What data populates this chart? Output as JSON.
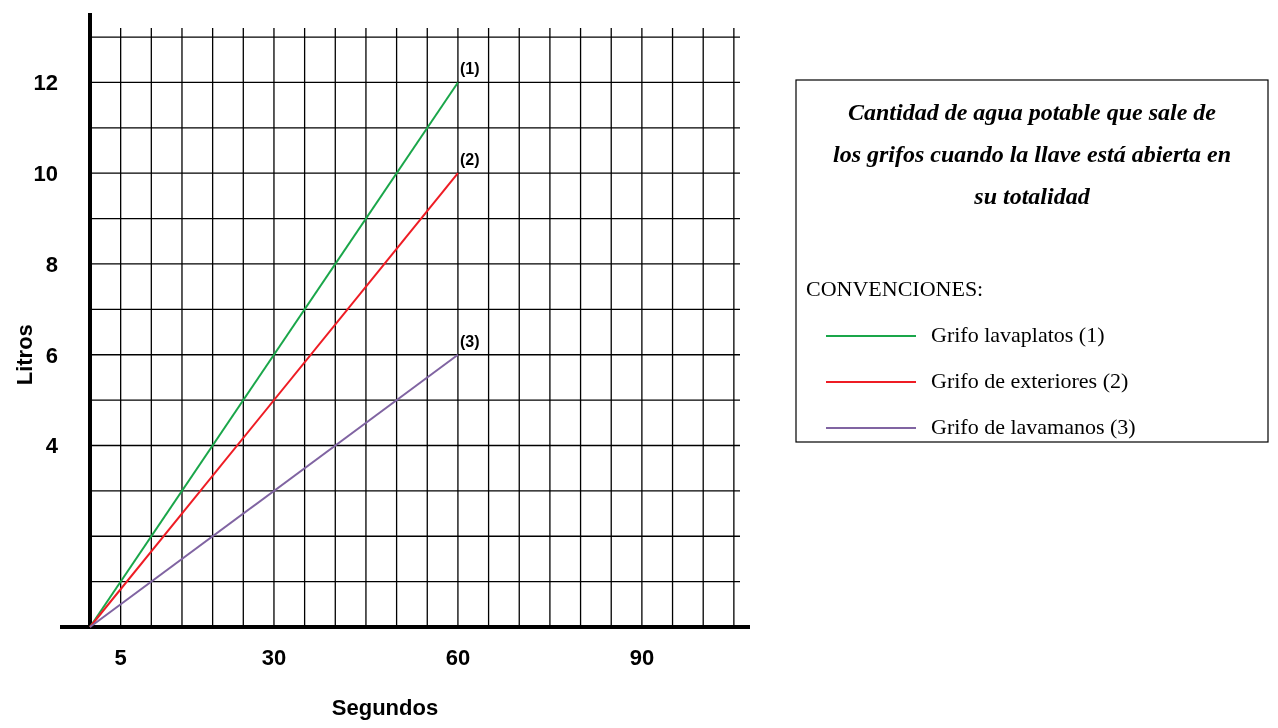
{
  "chart_data": {
    "type": "line",
    "title": "Cantidad de agua potable que sale de los grifos cuando la llave está abierta en su totalidad",
    "legend_title": "CONVENCIONES:",
    "xlabel": "Segundos",
    "ylabel": "Litros",
    "x": [
      0,
      60
    ],
    "series": [
      {
        "name": "Grifo lavaplatos (1)",
        "color": "#1aa64a",
        "values": [
          0,
          12
        ]
      },
      {
        "name": "Grifo de exteriores (2)",
        "color": "#ee1c24",
        "values": [
          0,
          10
        ]
      },
      {
        "name": "Grifo de lavamanos (3)",
        "color": "#8064a2",
        "values": [
          0,
          6
        ]
      }
    ],
    "annotations": [
      "(1)",
      "(2)",
      "(3)"
    ],
    "xlim": [
      0,
      106
    ],
    "ylim": [
      0,
      13.2
    ],
    "xticks": [
      {
        "value": 0,
        "label": null
      },
      {
        "value": 5,
        "label": "5"
      },
      {
        "value": 10,
        "label": null
      },
      {
        "value": 15,
        "label": null
      },
      {
        "value": 20,
        "label": null
      },
      {
        "value": 25,
        "label": null
      },
      {
        "value": 30,
        "label": "30"
      },
      {
        "value": 35,
        "label": null
      },
      {
        "value": 40,
        "label": null
      },
      {
        "value": 45,
        "label": null
      },
      {
        "value": 50,
        "label": null
      },
      {
        "value": 55,
        "label": null
      },
      {
        "value": 60,
        "label": "60"
      },
      {
        "value": 65,
        "label": null
      },
      {
        "value": 70,
        "label": null
      },
      {
        "value": 75,
        "label": null
      },
      {
        "value": 80,
        "label": null
      },
      {
        "value": 85,
        "label": null
      },
      {
        "value": 90,
        "label": "90"
      },
      {
        "value": 95,
        "label": null
      },
      {
        "value": 100,
        "label": null
      },
      {
        "value": 105,
        "label": null
      }
    ],
    "yticks": [
      {
        "value": 1,
        "label": null
      },
      {
        "value": 2,
        "label": null
      },
      {
        "value": 3,
        "label": null
      },
      {
        "value": 4,
        "label": "4"
      },
      {
        "value": 5,
        "label": null
      },
      {
        "value": 6,
        "label": "6"
      },
      {
        "value": 7,
        "label": null
      },
      {
        "value": 8,
        "label": "8"
      },
      {
        "value": 9,
        "label": null
      },
      {
        "value": 10,
        "label": "10"
      },
      {
        "value": 11,
        "label": null
      },
      {
        "value": 12,
        "label": "12"
      },
      {
        "value": 13,
        "label": null
      }
    ],
    "grid": true,
    "legend": "right",
    "marker": "none",
    "line_style": "solid"
  }
}
